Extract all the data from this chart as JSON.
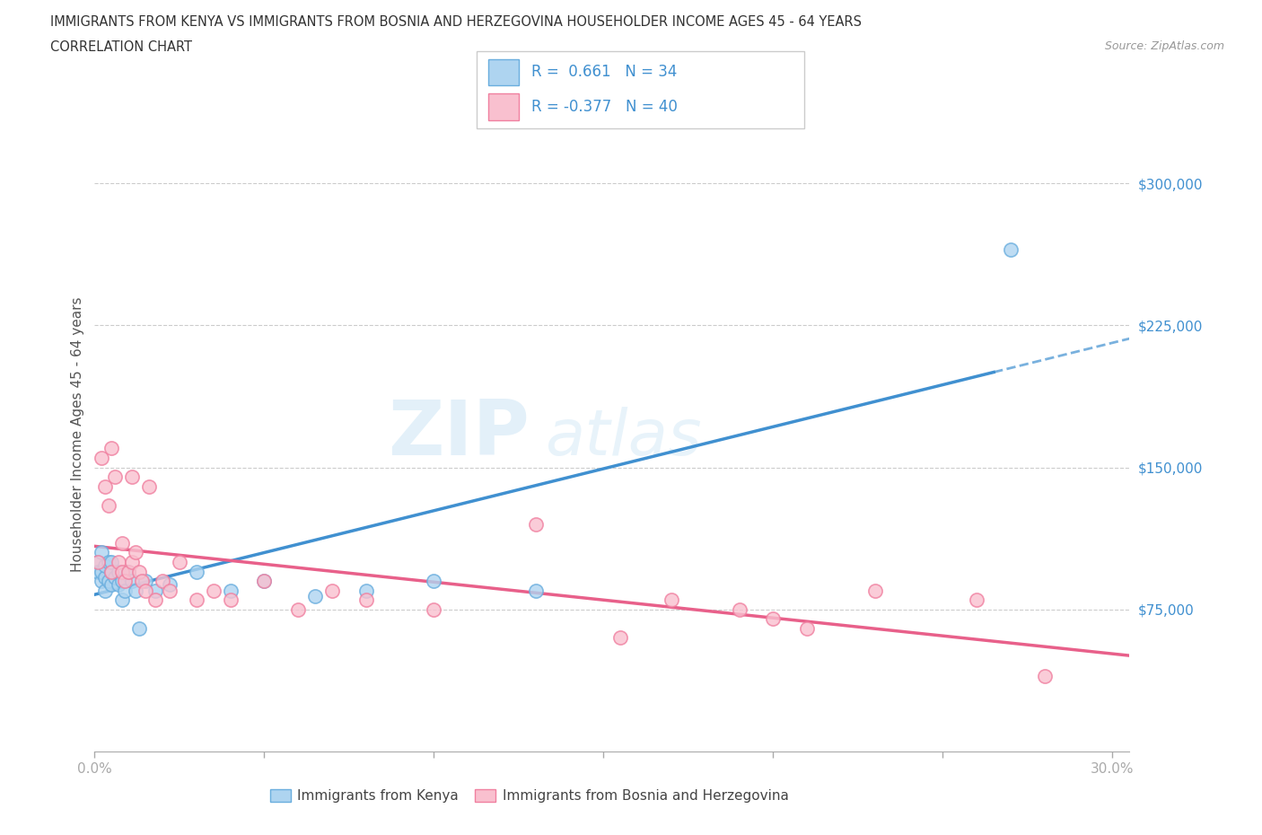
{
  "title_line1": "IMMIGRANTS FROM KENYA VS IMMIGRANTS FROM BOSNIA AND HERZEGOVINA HOUSEHOLDER INCOME AGES 45 - 64 YEARS",
  "title_line2": "CORRELATION CHART",
  "source_text": "Source: ZipAtlas.com",
  "ylabel": "Householder Income Ages 45 - 64 years",
  "xlim": [
    0.0,
    0.305
  ],
  "ylim": [
    0,
    335000
  ],
  "xtick_vals": [
    0.0,
    0.05,
    0.1,
    0.15,
    0.2,
    0.25,
    0.3
  ],
  "xticklabels": [
    "0.0%",
    "",
    "",
    "",
    "",
    "",
    "30.0%"
  ],
  "ytick_vals": [
    75000,
    150000,
    225000,
    300000
  ],
  "ytick_labels": [
    "$75,000",
    "$150,000",
    "$225,000",
    "$300,000"
  ],
  "watermark_zip": "ZIP",
  "watermark_atlas": "atlas",
  "kenya_fill_color": "#aed4f0",
  "kenya_edge_color": "#6aaede",
  "bosnia_fill_color": "#f9c0cf",
  "bosnia_edge_color": "#f080a0",
  "kenya_line_color": "#4090d0",
  "bosnia_line_color": "#e8608a",
  "legend_label_color": "#4090d0",
  "kenya_R": 0.661,
  "kenya_N": 34,
  "bosnia_R": -0.377,
  "bosnia_N": 40,
  "kenya_scatter_x": [
    0.001,
    0.001,
    0.002,
    0.002,
    0.002,
    0.003,
    0.003,
    0.003,
    0.004,
    0.004,
    0.005,
    0.005,
    0.005,
    0.006,
    0.007,
    0.007,
    0.008,
    0.008,
    0.009,
    0.01,
    0.011,
    0.012,
    0.013,
    0.015,
    0.018,
    0.022,
    0.03,
    0.04,
    0.05,
    0.065,
    0.08,
    0.1,
    0.13,
    0.27
  ],
  "kenya_scatter_y": [
    100000,
    95000,
    105000,
    90000,
    95000,
    92000,
    98000,
    85000,
    100000,
    90000,
    95000,
    88000,
    100000,
    92000,
    95000,
    88000,
    90000,
    80000,
    85000,
    95000,
    90000,
    85000,
    65000,
    90000,
    85000,
    88000,
    95000,
    85000,
    90000,
    82000,
    85000,
    90000,
    85000,
    265000
  ],
  "bosnia_scatter_x": [
    0.001,
    0.002,
    0.003,
    0.004,
    0.005,
    0.005,
    0.006,
    0.007,
    0.008,
    0.008,
    0.009,
    0.01,
    0.011,
    0.011,
    0.012,
    0.013,
    0.014,
    0.015,
    0.016,
    0.018,
    0.02,
    0.022,
    0.025,
    0.03,
    0.035,
    0.04,
    0.05,
    0.06,
    0.07,
    0.08,
    0.1,
    0.13,
    0.155,
    0.17,
    0.19,
    0.2,
    0.21,
    0.23,
    0.26,
    0.28
  ],
  "bosnia_scatter_y": [
    100000,
    155000,
    140000,
    130000,
    160000,
    95000,
    145000,
    100000,
    95000,
    110000,
    90000,
    95000,
    100000,
    145000,
    105000,
    95000,
    90000,
    85000,
    140000,
    80000,
    90000,
    85000,
    100000,
    80000,
    85000,
    80000,
    90000,
    75000,
    85000,
    80000,
    75000,
    120000,
    60000,
    80000,
    75000,
    70000,
    65000,
    85000,
    80000,
    40000
  ],
  "background_color": "#ffffff",
  "grid_color": "#cccccc"
}
